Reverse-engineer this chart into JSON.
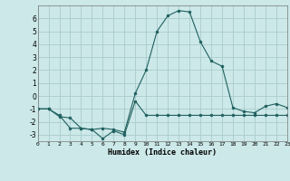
{
  "x": [
    0,
    1,
    2,
    3,
    4,
    5,
    6,
    7,
    8,
    9,
    10,
    11,
    12,
    13,
    14,
    15,
    16,
    17,
    18,
    19,
    20,
    21,
    22,
    23
  ],
  "line1_y": [
    -1,
    -1,
    -1.5,
    -2.5,
    -2.5,
    -2.6,
    -2.5,
    -2.6,
    -2.8,
    0.2,
    2.0,
    5.0,
    6.2,
    6.6,
    6.5,
    4.2,
    2.7,
    2.3,
    -0.9,
    -1.2,
    -1.3,
    -0.8,
    -0.6,
    -0.9
  ],
  "line2_y": [
    -1,
    -1,
    -1.6,
    -1.7,
    -2.5,
    -2.6,
    -3.3,
    -2.7,
    -3.0,
    -0.4,
    -1.5,
    -1.5,
    -1.5,
    -1.5,
    -1.5,
    -1.5,
    -1.5,
    -1.5,
    -1.5,
    -1.5,
    -1.5,
    -1.5,
    -1.5,
    -1.5
  ],
  "line_color": "#206060",
  "bg_color": "#cce8e8",
  "grid_color": "#aacccc",
  "xlabel": "Humidex (Indice chaleur)",
  "xlim": [
    0,
    23
  ],
  "ylim": [
    -3.5,
    7.0
  ],
  "yticks": [
    -3,
    -2,
    -1,
    0,
    1,
    2,
    3,
    4,
    5,
    6
  ],
  "xticks": [
    0,
    1,
    2,
    3,
    4,
    5,
    6,
    7,
    8,
    9,
    10,
    11,
    12,
    13,
    14,
    15,
    16,
    17,
    18,
    19,
    20,
    21,
    22,
    23
  ]
}
